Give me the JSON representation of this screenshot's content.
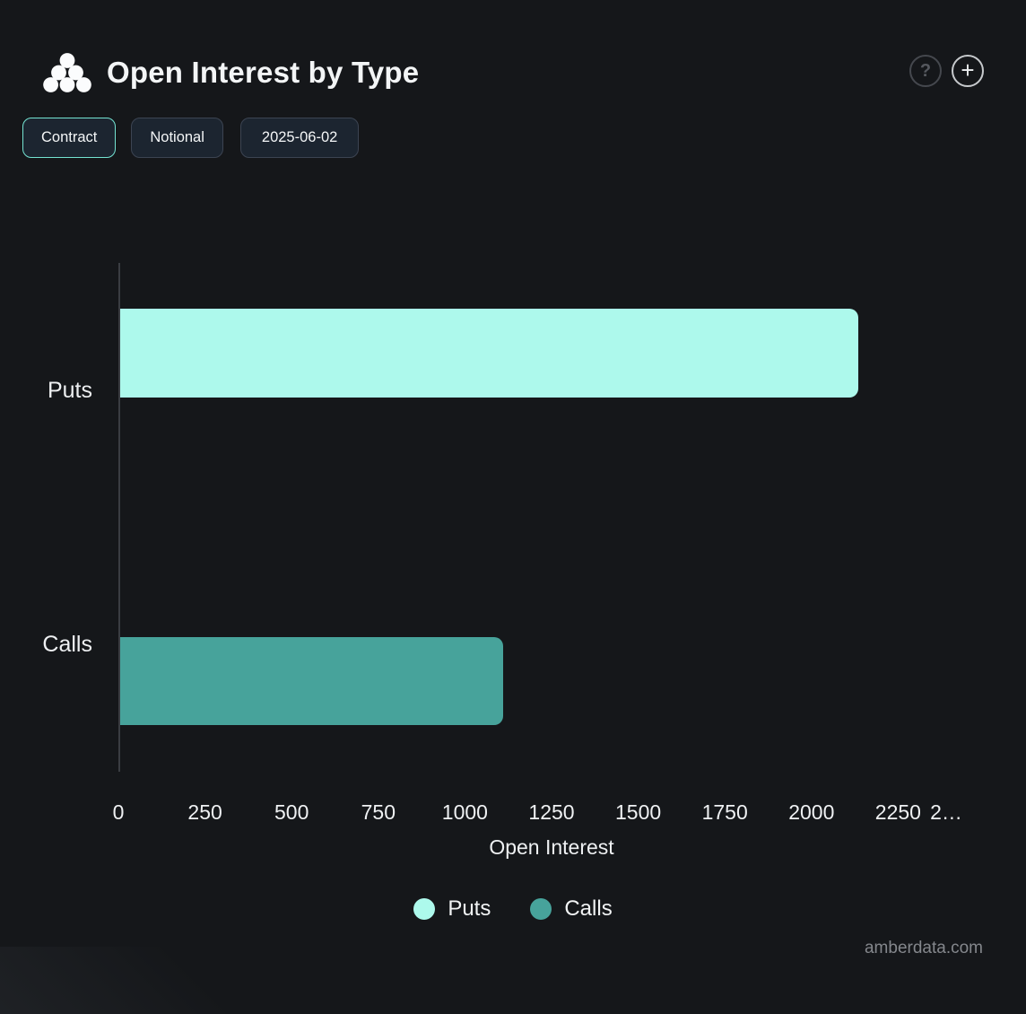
{
  "header": {
    "title": "Open Interest by Type",
    "help_label": "?",
    "add_label": "+"
  },
  "toolbar": {
    "buttons": [
      {
        "label": "Contract",
        "active": true
      },
      {
        "label": "Notional",
        "active": false
      },
      {
        "label": "2025-06-02",
        "active": false
      }
    ]
  },
  "chart_data": {
    "type": "bar",
    "orientation": "horizontal",
    "title": "Open Interest by Type",
    "categories": [
      "Puts",
      "Calls"
    ],
    "values": [
      2130,
      1105
    ],
    "bar_colors": [
      "#adf9ec",
      "#47a39b"
    ],
    "xlabel": "Open Interest",
    "ylabel": "",
    "xlim": [
      0,
      2500
    ],
    "xtick_values": [
      0,
      250,
      500,
      750,
      1000,
      1250,
      1500,
      1750,
      2000,
      2250,
      2500
    ],
    "xtick_labels": [
      "0",
      "250",
      "500",
      "750",
      "1000",
      "1250",
      "1500",
      "1750",
      "2000",
      "2250",
      "2…"
    ],
    "grid": false,
    "legend": {
      "position": "bottom-center",
      "items": [
        {
          "label": "Puts",
          "color": "#adf9ec"
        },
        {
          "label": "Calls",
          "color": "#47a39b"
        }
      ]
    }
  },
  "footer": {
    "watermark": "amberdata.com"
  },
  "colors": {
    "background": "#15171a",
    "accent": "#74e3d2",
    "puts": "#adf9ec",
    "calls": "#47a39b",
    "axis_line": "#3a3d42",
    "button_bg": "#1c2530",
    "button_border": "#3c4452",
    "text_primary": "#f1f3f4",
    "text_muted": "#84878c"
  }
}
